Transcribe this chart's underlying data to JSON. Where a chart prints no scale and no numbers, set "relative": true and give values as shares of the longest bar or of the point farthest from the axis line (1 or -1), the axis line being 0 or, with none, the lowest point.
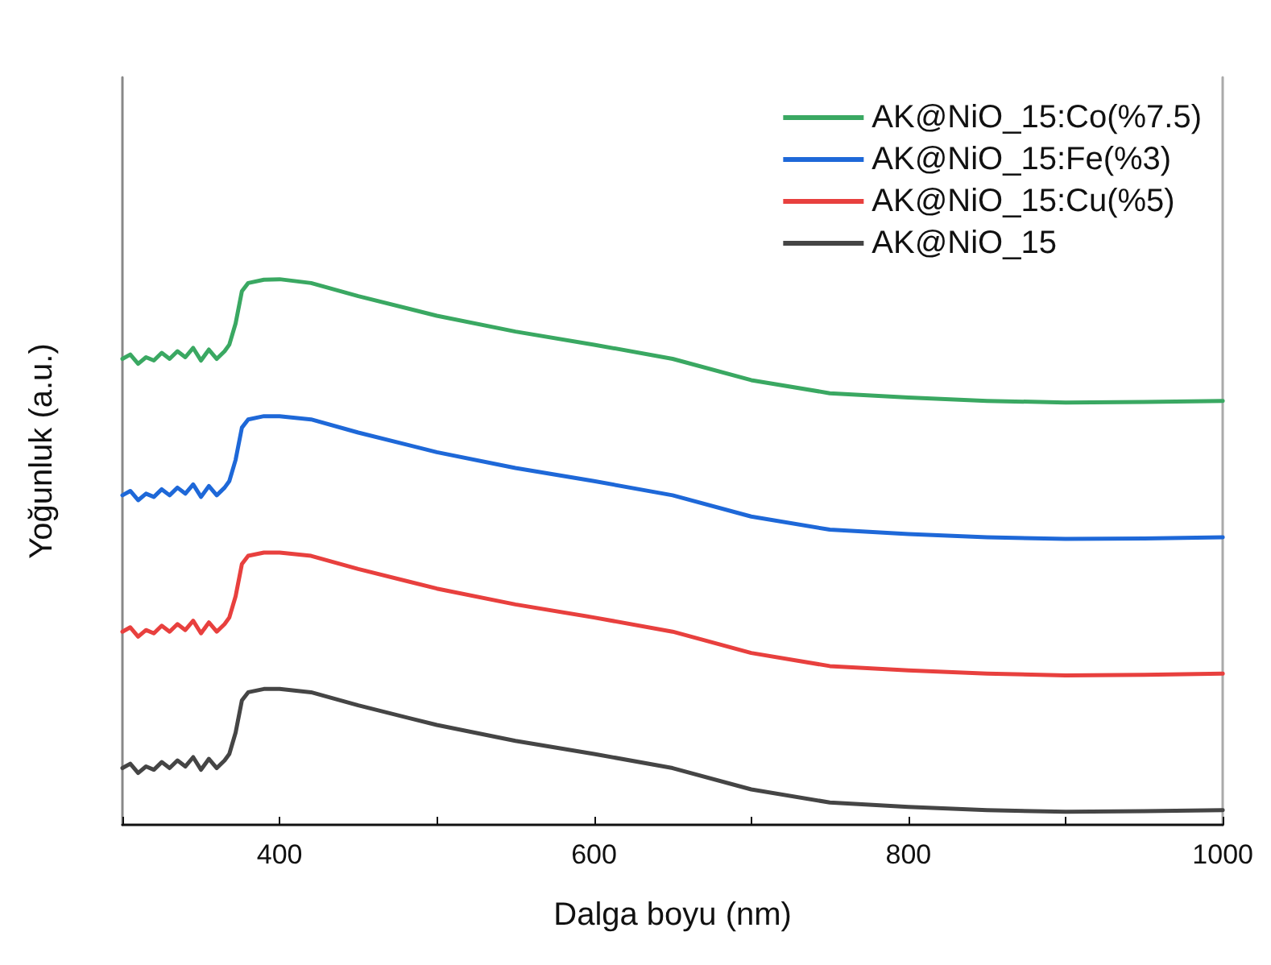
{
  "chart_data": {
    "type": "line",
    "xlabel": "Dalga boyu (nm)",
    "ylabel": "Yoğunluk (a.u.)",
    "relative": true,
    "xlim": [
      300,
      1000
    ],
    "xticks": [
      {
        "value": 300,
        "label": null
      },
      400,
      {
        "value": 500,
        "label": null
      },
      600,
      {
        "value": 700,
        "label": null
      },
      800,
      {
        "value": 900,
        "label": null
      },
      1000
    ],
    "grid": false,
    "legend": "top right",
    "line_style": "solid",
    "marker": "none",
    "x": [
      300,
      305,
      310,
      315,
      320,
      325,
      330,
      335,
      340,
      345,
      350,
      355,
      360,
      365,
      368,
      372,
      376,
      380,
      390,
      400,
      420,
      450,
      500,
      550,
      600,
      650,
      700,
      750,
      800,
      850,
      900,
      950,
      1000
    ],
    "series": [
      {
        "name": "AK@NiO_15:Co(%7.5)",
        "color": "#3aa862",
        "values": [
          0.854,
          0.862,
          0.845,
          0.857,
          0.851,
          0.865,
          0.854,
          0.868,
          0.857,
          0.874,
          0.851,
          0.871,
          0.854,
          0.868,
          0.88,
          0.919,
          0.978,
          0.993,
          0.999,
          1.0,
          0.993,
          0.969,
          0.933,
          0.904,
          0.88,
          0.854,
          0.815,
          0.791,
          0.783,
          0.777,
          0.774,
          0.775,
          0.777
        ]
      },
      {
        "name": "AK@NiO_15:Fe(%3)",
        "color": "#1e68d8",
        "values": [
          0.604,
          0.612,
          0.595,
          0.607,
          0.601,
          0.615,
          0.604,
          0.618,
          0.607,
          0.624,
          0.601,
          0.621,
          0.604,
          0.618,
          0.63,
          0.669,
          0.728,
          0.743,
          0.749,
          0.749,
          0.743,
          0.719,
          0.683,
          0.654,
          0.63,
          0.604,
          0.565,
          0.541,
          0.533,
          0.527,
          0.524,
          0.525,
          0.527
        ]
      },
      {
        "name": "AK@NiO_15:Cu(%5)",
        "color": "#e8403e",
        "values": [
          0.354,
          0.362,
          0.345,
          0.357,
          0.351,
          0.365,
          0.354,
          0.368,
          0.357,
          0.374,
          0.351,
          0.371,
          0.354,
          0.368,
          0.38,
          0.419,
          0.478,
          0.493,
          0.499,
          0.499,
          0.493,
          0.469,
          0.433,
          0.404,
          0.38,
          0.354,
          0.315,
          0.291,
          0.283,
          0.277,
          0.274,
          0.275,
          0.277
        ]
      },
      {
        "name": "AK@NiO_15",
        "color": "#454545",
        "values": [
          0.104,
          0.112,
          0.095,
          0.107,
          0.101,
          0.115,
          0.104,
          0.118,
          0.107,
          0.124,
          0.101,
          0.121,
          0.104,
          0.118,
          0.13,
          0.169,
          0.228,
          0.243,
          0.249,
          0.249,
          0.243,
          0.219,
          0.183,
          0.154,
          0.13,
          0.104,
          0.065,
          0.041,
          0.033,
          0.027,
          0.024,
          0.025,
          0.027
        ]
      }
    ]
  }
}
